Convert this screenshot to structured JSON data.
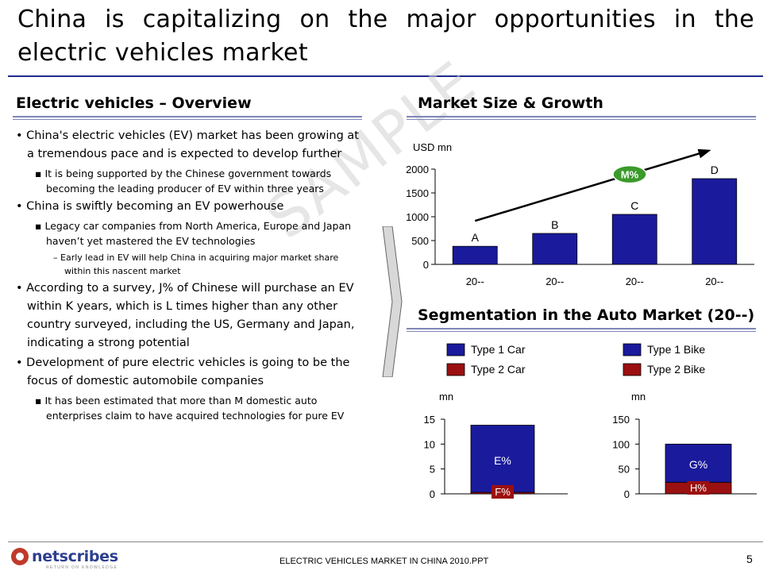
{
  "title": "China is capitalizing on the major opportunities in the electric vehicles market",
  "overview": {
    "heading": "Electric vehicles – Overview",
    "bullets": [
      {
        "level": 1,
        "text": "China's electric vehicles (EV) market has been growing at a tremendous pace and is expected to develop further"
      },
      {
        "level": 2,
        "text": "It is being supported by the Chinese government towards becoming the leading producer of EV within three years"
      },
      {
        "level": 1,
        "text": "China is swiftly becoming an EV powerhouse"
      },
      {
        "level": 2,
        "text": "Legacy car companies from North America, Europe and Japan haven’t yet mastered the EV technologies"
      },
      {
        "level": 3,
        "text": "Early lead in EV will help China in acquiring major market share within this nascent market"
      },
      {
        "level": 1,
        "text": "According to a survey, J% of Chinese will purchase an EV within K years, which is L times higher than any other country surveyed, including the US, Germany and Japan, indicating a strong potential"
      },
      {
        "level": 1,
        "text": "Development of pure electric vehicles is going to be the focus of domestic automobile companies"
      },
      {
        "level": 2,
        "text": "It has been estimated that more than M domestic auto enterprises claim to have acquired technologies for pure EV"
      }
    ],
    "bullet_glyphs": {
      "1": "•",
      "2": "▪",
      "3": "–"
    }
  },
  "watermark": "SAMPLE",
  "market": {
    "heading": "Market Size & Growth"
  },
  "segmentation": {
    "heading": "Segmentation in the Auto Market (20--)"
  },
  "chart_data": [
    {
      "type": "bar",
      "ylabel": "USD mn",
      "ylim": [
        0,
        2000
      ],
      "yticks": [
        0,
        500,
        1000,
        1500,
        2000
      ],
      "categories": [
        "20--",
        "20--",
        "20--",
        "20--"
      ],
      "values": [
        380,
        650,
        1050,
        1800
      ],
      "bar_labels": [
        "A",
        "B",
        "C",
        "D"
      ],
      "growth_label": "M%",
      "colors": {
        "bar": "#1a1a9c",
        "arrow": "#000000",
        "growth_badge": "#3a9a2a"
      }
    },
    {
      "type": "bar",
      "stacked": true,
      "ylabel": "mn",
      "ylim": [
        0,
        15
      ],
      "yticks": [
        0,
        5,
        10,
        15
      ],
      "legend": [
        "Type 1 Car",
        "Type 2 Car"
      ],
      "series": [
        {
          "name": "Type 1 Car",
          "values": [
            13.5
          ],
          "label": "E%"
        },
        {
          "name": "Type 2 Car",
          "values": [
            0.3
          ],
          "label": "F%"
        }
      ],
      "colors": {
        "type1": "#1a1a9c",
        "type2": "#9b1010"
      }
    },
    {
      "type": "bar",
      "stacked": true,
      "ylabel": "mn",
      "ylim": [
        0,
        150
      ],
      "yticks": [
        0,
        50,
        100,
        150
      ],
      "legend": [
        "Type 1 Bike",
        "Type 2 Bike"
      ],
      "series": [
        {
          "name": "Type 1 Bike",
          "values": [
            77
          ],
          "label": "G%"
        },
        {
          "name": "Type 2 Bike",
          "values": [
            23
          ],
          "label": "H%"
        }
      ],
      "colors": {
        "type1": "#1a1a9c",
        "type2": "#9b1010"
      }
    }
  ],
  "footer": {
    "logo_text": "netscribes",
    "logo_tagline": "RETURN ON KNOWLEDGE",
    "file_name": "ELECTRIC VEHICLES MARKET IN CHINA 2010.PPT",
    "page_number": "5"
  }
}
